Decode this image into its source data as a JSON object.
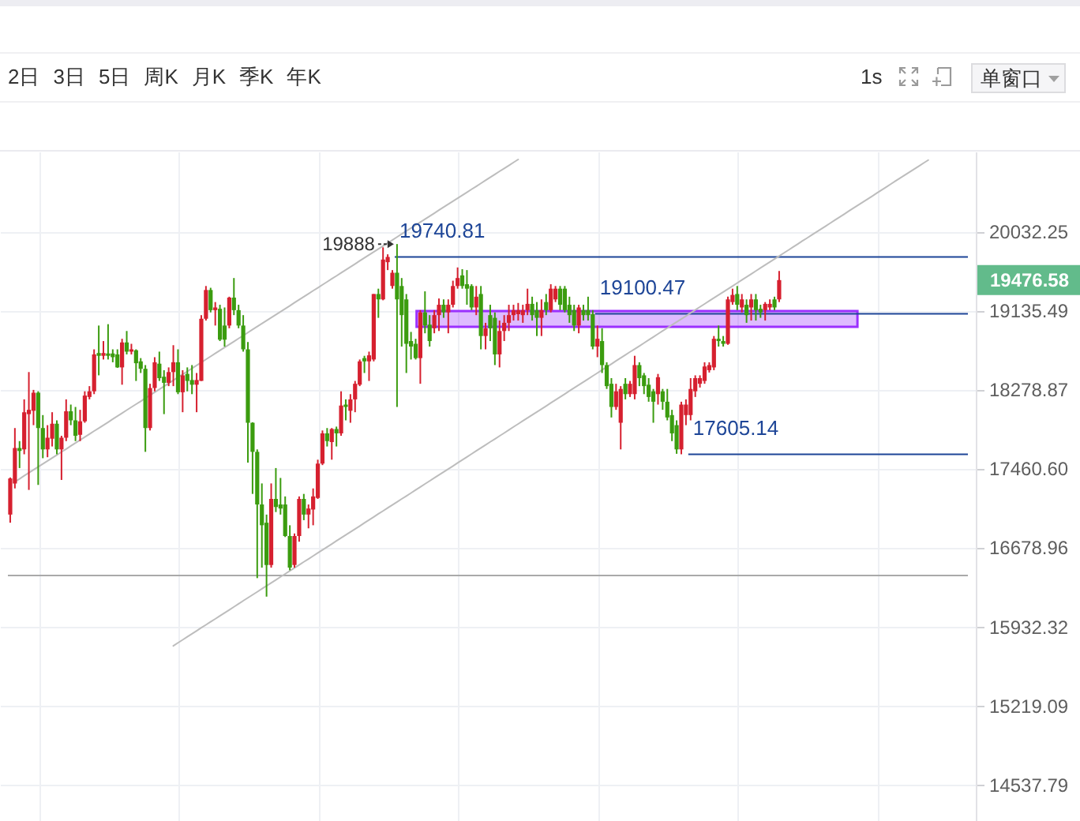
{
  "chart_data": {
    "type": "candlestick",
    "log": true,
    "grid": true,
    "tick_labels": "y",
    "ylim": [
      14232,
      20984
    ],
    "yticks": [
      14537.79,
      15219.09,
      15932.32,
      16678.96,
      {
        "value": 17460.6,
        "label": "17460.60"
      },
      18278.87,
      19135.49,
      20032.25
    ],
    "categories": [
      null,
      null,
      null,
      null,
      null,
      null,
      null,
      null,
      null,
      null,
      null,
      null,
      null,
      null,
      null,
      null,
      null,
      null,
      null,
      null,
      null,
      null,
      null,
      null,
      null,
      null,
      null,
      null,
      null,
      null,
      null,
      null,
      null,
      null,
      null,
      null,
      null,
      null,
      null,
      null,
      null,
      null,
      null,
      null,
      null,
      null,
      null,
      null,
      null,
      null,
      null,
      null,
      null,
      null,
      null,
      null,
      null,
      null,
      null,
      null,
      null,
      null,
      null,
      null,
      null,
      null,
      null,
      null,
      null,
      null,
      null,
      null,
      null,
      null,
      null,
      null,
      null,
      null,
      null,
      null,
      null,
      null,
      null,
      null,
      null,
      null,
      null,
      null,
      null,
      null,
      null,
      null,
      null,
      null,
      null,
      null,
      null,
      null,
      null,
      null,
      null,
      null,
      null,
      null,
      null,
      null,
      null,
      null,
      null,
      null,
      null,
      null,
      null,
      null,
      null,
      null,
      null,
      null,
      null,
      null,
      null,
      null,
      null,
      null,
      null,
      null,
      null,
      null,
      null,
      null,
      null,
      null,
      null,
      null,
      null,
      null,
      null,
      null,
      null,
      null,
      null,
      null,
      null,
      null,
      null,
      null,
      null,
      null,
      null,
      null,
      null,
      null,
      null,
      null,
      null,
      null,
      null,
      null,
      null,
      null,
      null,
      null,
      null,
      null,
      null,
      null,
      null,
      null,
      null,
      null,
      null,
      null,
      null,
      null,
      null,
      null,
      null,
      null,
      null,
      null,
      null,
      null,
      null,
      null,
      null,
      null,
      null,
      null,
      null,
      null,
      null,
      null,
      null,
      null,
      null,
      null,
      null,
      null,
      null,
      null,
      null,
      null,
      null,
      null,
      null,
      null
    ],
    "ohlc": [
      [
        17000,
        17370,
        16920,
        17360
      ],
      [
        17310,
        17875,
        17260,
        17670
      ],
      [
        17670,
        17740,
        17465,
        17640
      ],
      [
        17655,
        18175,
        17605,
        18040
      ],
      [
        18020,
        18465,
        17245,
        18065
      ],
      [
        18055,
        18275,
        17905,
        18245
      ],
      [
        18245,
        18260,
        17295,
        17875
      ],
      [
        17875,
        18010,
        17565,
        17655
      ],
      [
        17655,
        17905,
        17575,
        17775
      ],
      [
        17765,
        18040,
        17685,
        17920
      ],
      [
        17920,
        17955,
        17605,
        17655
      ],
      [
        17655,
        17795,
        17345,
        17775
      ],
      [
        17775,
        18175,
        17740,
        18050
      ],
      [
        18050,
        18120,
        17905,
        17955
      ],
      [
        17955,
        18095,
        17740,
        17795
      ],
      [
        17805,
        18065,
        17740,
        17945
      ],
      [
        17945,
        18260,
        17930,
        18215
      ],
      [
        18200,
        18315,
        18175,
        18260
      ],
      [
        18260,
        18710,
        18230,
        18655
      ],
      [
        18670,
        18970,
        18430,
        18640
      ],
      [
        18640,
        18800,
        18600,
        18670
      ],
      [
        18665,
        18985,
        18600,
        18640
      ],
      [
        18665,
        18710,
        18570,
        18625
      ],
      [
        18655,
        18710,
        18510,
        18515
      ],
      [
        18515,
        18825,
        18330,
        18785
      ],
      [
        18785,
        18910,
        18655,
        18685
      ],
      [
        18685,
        18770,
        18655,
        18710
      ],
      [
        18700,
        18710,
        18370,
        18560
      ],
      [
        18580,
        18615,
        18455,
        18500
      ],
      [
        18500,
        18540,
        17630,
        17875
      ],
      [
        17875,
        18340,
        17850,
        18295
      ],
      [
        18295,
        18625,
        18260,
        18570
      ],
      [
        18555,
        18685,
        18370,
        18400
      ],
      [
        18415,
        18485,
        18020,
        18350
      ],
      [
        18350,
        18515,
        18315,
        18465
      ],
      [
        18465,
        18755,
        18315,
        18570
      ],
      [
        18570,
        18710,
        18230,
        18250
      ],
      [
        18250,
        18485,
        18040,
        18430
      ],
      [
        18445,
        18515,
        18260,
        18370
      ],
      [
        18380,
        18540,
        18230,
        18330
      ],
      [
        18330,
        18455,
        18040,
        18380
      ],
      [
        18370,
        19085,
        18370,
        19045
      ],
      [
        19045,
        19410,
        19025,
        19365
      ],
      [
        19365,
        19390,
        19115,
        19140
      ],
      [
        19140,
        19230,
        18970,
        19170
      ],
      [
        19155,
        19200,
        18800,
        18815
      ],
      [
        18970,
        19170,
        18740,
        18815
      ],
      [
        18970,
        19290,
        18940,
        19280
      ],
      [
        19280,
        19500,
        19085,
        19140
      ],
      [
        19140,
        19200,
        18940,
        18970
      ],
      [
        18970,
        19085,
        18685,
        18710
      ],
      [
        18710,
        18790,
        17520,
        17930
      ],
      [
        17930,
        17935,
        17205,
        17630
      ],
      [
        17630,
        17655,
        16385,
        17100
      ],
      [
        17100,
        17310,
        16485,
        16895
      ],
      [
        16920,
        17000,
        16210,
        16510
      ],
      [
        16510,
        17310,
        16485,
        17155
      ],
      [
        17155,
        17465,
        17025,
        17075
      ],
      [
        17100,
        17365,
        17000,
        17060
      ],
      [
        17100,
        17180,
        16780,
        16790
      ],
      [
        16790,
        16895,
        16460,
        16485
      ],
      [
        16510,
        16815,
        16485,
        16790
      ],
      [
        16790,
        17180,
        16735,
        17155
      ],
      [
        17155,
        17205,
        16945,
        17000
      ],
      [
        17000,
        17100,
        16865,
        17060
      ],
      [
        17050,
        17260,
        16895,
        17180
      ],
      [
        17165,
        17550,
        17155,
        17510
      ],
      [
        17510,
        17850,
        17495,
        17820
      ],
      [
        17820,
        17875,
        17685,
        17740
      ],
      [
        17730,
        17875,
        17550,
        17865
      ],
      [
        17865,
        17890,
        17685,
        17820
      ],
      [
        17820,
        18260,
        17795,
        18110
      ],
      [
        18120,
        18175,
        17955,
        18095
      ],
      [
        18055,
        18230,
        17930,
        18175
      ],
      [
        18175,
        18370,
        18040,
        18340
      ],
      [
        18330,
        18600,
        18315,
        18580
      ],
      [
        18615,
        18640,
        18455,
        18580
      ],
      [
        18580,
        18685,
        18370,
        18645
      ],
      [
        18600,
        19320,
        18580,
        19320
      ],
      [
        19320,
        19380,
        19055,
        19260
      ],
      [
        19260,
        19850,
        19250,
        19710
      ],
      [
        19680,
        19770,
        19590,
        19740
      ],
      [
        19410,
        19590,
        19380,
        19560
      ],
      [
        19560,
        19888,
        18095,
        19260
      ],
      [
        19410,
        19500,
        18740,
        19085
      ],
      [
        19260,
        19320,
        18455,
        18770
      ],
      [
        18800,
        18900,
        18600,
        18740
      ],
      [
        18770,
        18825,
        18600,
        18615
      ],
      [
        18615,
        19140,
        18340,
        19115
      ],
      [
        19115,
        19350,
        18885,
        18970
      ],
      [
        18980,
        19085,
        18740,
        18800
      ],
      [
        18940,
        19140,
        18885,
        19085
      ],
      [
        19085,
        19270,
        18910,
        19200
      ],
      [
        19200,
        19260,
        19055,
        19115
      ],
      [
        19115,
        19260,
        18885,
        19200
      ],
      [
        19200,
        19470,
        19170,
        19410
      ],
      [
        19410,
        19620,
        19380,
        19500
      ],
      [
        19530,
        19600,
        19380,
        19410
      ],
      [
        19430,
        19590,
        19200,
        19380
      ],
      [
        19410,
        19430,
        19140,
        19170
      ],
      [
        19170,
        19410,
        19085,
        19290
      ],
      [
        19320,
        19410,
        18710,
        18855
      ],
      [
        18855,
        19000,
        18710,
        18940
      ],
      [
        19085,
        19200,
        18800,
        18940
      ],
      [
        19055,
        19115,
        18540,
        18655
      ],
      [
        18655,
        19025,
        18515,
        18910
      ],
      [
        18910,
        19085,
        18800,
        19000
      ],
      [
        19000,
        19200,
        18910,
        19085
      ],
      [
        19085,
        19200,
        19025,
        19140
      ],
      [
        19095,
        19220,
        19025,
        19140
      ],
      [
        19085,
        19200,
        19000,
        19140
      ],
      [
        19140,
        19380,
        19085,
        19210
      ],
      [
        19210,
        19290,
        19025,
        19085
      ],
      [
        19140,
        19230,
        18855,
        19055
      ],
      [
        19055,
        19260,
        18855,
        19140
      ],
      [
        19230,
        19320,
        19085,
        19140
      ],
      [
        19140,
        19430,
        19115,
        19380
      ],
      [
        19260,
        19410,
        19230,
        19380
      ],
      [
        19380,
        19410,
        19140,
        19200
      ],
      [
        19380,
        19410,
        19115,
        19140
      ],
      [
        19200,
        19290,
        19000,
        19085
      ],
      [
        19140,
        19200,
        18910,
        18970
      ],
      [
        18970,
        19200,
        18885,
        19170
      ],
      [
        19140,
        19200,
        19025,
        19085
      ],
      [
        19140,
        19290,
        19025,
        19085
      ],
      [
        19095,
        19140,
        18710,
        18740
      ],
      [
        18740,
        18970,
        18625,
        18825
      ],
      [
        18800,
        18940,
        18455,
        18540
      ],
      [
        18540,
        18570,
        18285,
        18315
      ],
      [
        18340,
        18400,
        17985,
        18095
      ],
      [
        18095,
        18340,
        18065,
        18260
      ],
      [
        17930,
        18315,
        17655,
        18285
      ],
      [
        18340,
        18400,
        18175,
        18230
      ],
      [
        18230,
        18370,
        18200,
        18340
      ],
      [
        18230,
        18640,
        18175,
        18540
      ],
      [
        18540,
        18570,
        18315,
        18400
      ],
      [
        18430,
        18455,
        18230,
        18315
      ],
      [
        18330,
        18400,
        18150,
        18200
      ],
      [
        18260,
        18285,
        17930,
        18150
      ],
      [
        18230,
        18445,
        18120,
        18410
      ],
      [
        18260,
        18285,
        18065,
        18150
      ],
      [
        18150,
        18285,
        17955,
        17985
      ],
      [
        18010,
        18065,
        17740,
        17820
      ],
      [
        17905,
        17955,
        17610,
        17655
      ],
      [
        17655,
        18150,
        17605.14,
        18120
      ],
      [
        18010,
        18175,
        17905,
        18120
      ],
      [
        18010,
        18400,
        17955,
        18285
      ],
      [
        18260,
        18430,
        18200,
        18400
      ],
      [
        18340,
        18430,
        18300,
        18400
      ],
      [
        18370,
        18570,
        18340,
        18525
      ],
      [
        18485,
        18570,
        18460,
        18540
      ],
      [
        18515,
        18855,
        18485,
        18825
      ],
      [
        18825,
        18970,
        18740,
        18800
      ],
      [
        18800,
        18855,
        18740,
        18770
      ],
      [
        18770,
        19290,
        18760,
        19260
      ],
      [
        19230,
        19380,
        19200,
        19310
      ],
      [
        19320,
        19410,
        19140,
        19200
      ],
      [
        19170,
        19320,
        19115,
        19260
      ],
      [
        19200,
        19260,
        19000,
        19085
      ],
      [
        19170,
        19320,
        19025,
        19260
      ],
      [
        19260,
        19320,
        19025,
        19140
      ],
      [
        19155,
        19200,
        19055,
        19115
      ],
      [
        19140,
        19230,
        19025,
        19210
      ],
      [
        19170,
        19260,
        19140,
        19210
      ],
      [
        19260,
        19290,
        19140,
        19170
      ],
      [
        19260,
        19580,
        19230,
        19476.58
      ],
      null,
      null,
      null,
      null,
      null,
      null,
      null,
      null,
      null,
      null,
      null,
      null,
      null,
      null,
      null,
      null,
      null,
      null,
      null,
      null,
      null,
      null,
      null,
      null,
      null,
      null,
      null,
      null,
      null,
      null,
      null,
      null,
      null,
      null,
      null,
      null,
      null,
      null,
      null,
      null
    ],
    "colors": [
      "#d6202f",
      "#d6202f",
      "#3b9c0f",
      "#d6202f",
      "#d6202f",
      "#d6202f",
      "#3b9c0f",
      "#3b9c0f",
      "#d6202f",
      "#d6202f",
      "#3b9c0f",
      "#d6202f",
      "#d6202f",
      "#3b9c0f",
      "#3b9c0f",
      "#d6202f",
      "#d6202f",
      "#d6202f",
      "#d6202f",
      "#3b9c0f",
      "#d6202f",
      "#3b9c0f",
      "#3b9c0f",
      "#3b9c0f",
      "#d6202f",
      "#3b9c0f",
      "#d6202f",
      "#3b9c0f",
      "#3b9c0f",
      "#3b9c0f",
      "#d6202f",
      "#d6202f",
      "#3b9c0f",
      "#3b9c0f",
      "#d6202f",
      "#d6202f",
      "#3b9c0f",
      "#d6202f",
      "#3b9c0f",
      "#3b9c0f",
      "#d6202f",
      "#d6202f",
      "#d6202f",
      "#3b9c0f",
      "#d6202f",
      "#3b9c0f",
      "#3b9c0f",
      "#d6202f",
      "#3b9c0f",
      "#3b9c0f",
      "#3b9c0f",
      "#3b9c0f",
      "#3b9c0f",
      "#3b9c0f",
      "#3b9c0f",
      "#3b9c0f",
      "#d6202f",
      "#3b9c0f",
      "#3b9c0f",
      "#3b9c0f",
      "#3b9c0f",
      "#d6202f",
      "#d6202f",
      "#3b9c0f",
      "#d6202f",
      "#d6202f",
      "#d6202f",
      "#d6202f",
      "#3b9c0f",
      "#d6202f",
      "#3b9c0f",
      "#d6202f",
      "#3b9c0f",
      "#d6202f",
      "#d6202f",
      "#d6202f",
      "#3b9c0f",
      "#d6202f",
      "#d6202f",
      "#3b9c0f",
      "#d6202f",
      "#d6202f",
      "#d6202f",
      "#3b9c0f",
      "#3b9c0f",
      "#3b9c0f",
      "#3b9c0f",
      "#3b9c0f",
      "#d6202f",
      "#3b9c0f",
      "#3b9c0f",
      "#d6202f",
      "#d6202f",
      "#3b9c0f",
      "#d6202f",
      "#d6202f",
      "#d6202f",
      "#3b9c0f",
      "#3b9c0f",
      "#3b9c0f",
      "#d6202f",
      "#3b9c0f",
      "#d6202f",
      "#3b9c0f",
      "#3b9c0f",
      "#d6202f",
      "#d6202f",
      "#d6202f",
      "#d6202f",
      "#d6202f",
      "#d6202f",
      "#d6202f",
      "#3b9c0f",
      "#3b9c0f",
      "#d6202f",
      "#3b9c0f",
      "#d6202f",
      "#d6202f",
      "#3b9c0f",
      "#3b9c0f",
      "#3b9c0f",
      "#3b9c0f",
      "#d6202f",
      "#3b9c0f",
      "#3b9c0f",
      "#3b9c0f",
      "#d6202f",
      "#3b9c0f",
      "#3b9c0f",
      "#3b9c0f",
      "#d6202f",
      "#d6202f",
      "#3b9c0f",
      "#d6202f",
      "#d6202f",
      "#3b9c0f",
      "#3b9c0f",
      "#3b9c0f",
      "#3b9c0f",
      "#d6202f",
      "#3b9c0f",
      "#3b9c0f",
      "#3b9c0f",
      "#3b9c0f",
      "#d6202f",
      "#d6202f",
      "#d6202f",
      "#d6202f",
      "#d6202f",
      "#d6202f",
      "#d6202f",
      "#d6202f",
      "#3b9c0f",
      "#3b9c0f",
      "#d6202f",
      "#d6202f",
      "#3b9c0f",
      "#d6202f",
      "#3b9c0f",
      "#d6202f",
      "#3b9c0f",
      "#3b9c0f",
      "#d6202f",
      "#d6202f",
      "#3b9c0f",
      "#d6202f",
      null,
      null,
      null,
      null,
      null,
      null,
      null,
      null,
      null,
      null,
      null,
      null,
      null,
      null,
      null,
      null,
      null,
      null,
      null,
      null,
      null,
      null,
      null,
      null,
      null,
      null,
      null,
      null,
      null,
      null,
      null,
      null,
      null,
      null,
      null,
      null,
      null,
      null,
      null,
      null
    ],
    "series": [
      {
        "type": "line",
        "color": "#bdbdbd",
        "values": [
          null,
          17326,
          17356,
          17387,
          17417,
          17447,
          17477,
          17507,
          17538,
          17568,
          17598,
          17629,
          17659,
          17690,
          17721,
          17752,
          17782,
          17813,
          17844,
          17874,
          17905,
          17936,
          17968,
          17999,
          18030,
          18062,
          18093,
          18124,
          18155,
          18187,
          18218,
          18250,
          18282,
          18313,
          18345,
          18377,
          18409,
          18441,
          18472,
          18504,
          18536,
          18568,
          18601,
          18633,
          18666,
          18698,
          18730,
          18763,
          18795,
          18828,
          18860,
          18893,
          18926,
          18959,
          18992,
          19025,
          19057,
          19090,
          19123,
          19156,
          19189,
          19223,
          19256,
          19290,
          19323,
          19357,
          19390,
          19424,
          19457,
          19491,
          19524,
          19558,
          19592,
          19626,
          19660,
          19695,
          19729,
          19763,
          19797,
          19831,
          19865,
          19900,
          19934,
          19969,
          20004,
          20039,
          20073,
          20108,
          20143,
          20177,
          20212,
          20247,
          20283,
          20318,
          20353,
          20389,
          20424,
          20459,
          20494,
          20530,
          20565,
          20601,
          20637,
          20673,
          20709,
          20745,
          20780,
          20816,
          20852,
          20888,
          null,
          null,
          null,
          null,
          null,
          null,
          null,
          null,
          null,
          null,
          null,
          null,
          null,
          null,
          null,
          null,
          null,
          null,
          null,
          null,
          null,
          null,
          null,
          null,
          null,
          null,
          null,
          null,
          null,
          null,
          null,
          null,
          null,
          null,
          null,
          null,
          null,
          null,
          null,
          null,
          null,
          null,
          null,
          null,
          null,
          null,
          null,
          null,
          null,
          null,
          null,
          null,
          null,
          null,
          null,
          null,
          null,
          null,
          null,
          null,
          null,
          null,
          null,
          null,
          null,
          null,
          null,
          null,
          null,
          null,
          null,
          null,
          null,
          null,
          null,
          null,
          null,
          null,
          null,
          null,
          null,
          null,
          null,
          null,
          null,
          null,
          null,
          null,
          null,
          null,
          null,
          null,
          null,
          null,
          null,
          null
        ]
      },
      {
        "type": "line",
        "color": "#bdbdbd",
        "values": [
          null,
          null,
          null,
          null,
          null,
          null,
          null,
          null,
          null,
          null,
          null,
          null,
          null,
          null,
          null,
          null,
          null,
          null,
          null,
          null,
          null,
          null,
          null,
          null,
          null,
          null,
          null,
          null,
          null,
          null,
          null,
          null,
          null,
          null,
          null,
          15754,
          15782,
          15809,
          15837,
          15864,
          15892,
          15920,
          15947,
          15975,
          16002,
          16030,
          16058,
          16086,
          16114,
          16142,
          16171,
          16199,
          16227,
          16255,
          16283,
          16311,
          16340,
          16368,
          16397,
          16425,
          16454,
          16483,
          16511,
          16540,
          16568,
          16597,
          16626,
          16655,
          16684,
          16713,
          16743,
          16772,
          16801,
          16830,
          16859,
          16888,
          16918,
          16947,
          16977,
          17007,
          17036,
          17066,
          17095,
          17125,
          17155,
          17184,
          17214,
          17245,
          17275,
          17305,
          17335,
          17365,
          17395,
          17426,
          17456,
          17486,
          17517,
          17547,
          17578,
          17609,
          17640,
          17670,
          17701,
          17732,
          17762,
          17793,
          17824,
          17855,
          17887,
          17918,
          17949,
          17980,
          18012,
          18043,
          18074,
          18105,
          18137,
          18169,
          18200,
          18232,
          18264,
          18296,
          18328,
          18359,
          18391,
          18423,
          18455,
          18488,
          18520,
          18552,
          18585,
          18617,
          18649,
          18682,
          18714,
          18746,
          18779,
          18812,
          18845,
          18878,
          18911,
          18943,
          18976,
          19009,
          19042,
          19075,
          19109,
          19142,
          19176,
          19209,
          19243,
          19276,
          19309,
          19343,
          19376,
          19410,
          19444,
          19478,
          19512,
          19546,
          19580,
          19614,
          19648,
          19682,
          19716,
          19750,
          19785,
          19819,
          19854,
          19889,
          19924,
          19958,
          19993,
          20028,
          20062,
          20097,
          20132,
          20168,
          20203,
          20238,
          20274,
          20309,
          20344,
          20379,
          20415,
          20450,
          20486,
          20522,
          20558,
          20594,
          20630,
          20665,
          20701,
          20737,
          20773,
          20809,
          20845,
          20881,
          null,
          null,
          null,
          null,
          null,
          null,
          null,
          null
        ]
      }
    ],
    "ref_lines": [
      {
        "axis": "y",
        "value": 19740.81,
        "label": "19740.81",
        "color": "#1d4597"
      },
      {
        "axis": "y",
        "value": 19100.47,
        "label": "19100.47",
        "color": "#1d4597"
      },
      {
        "axis": "y",
        "value": 17605.14,
        "label": "17605.14",
        "color": "#1d4597"
      },
      {
        "axis": "y",
        "value": 16410,
        "color": "#a9a9a9"
      }
    ],
    "bands": [
      {
        "axis": "y",
        "from": 18955,
        "to": 19130,
        "color": "#9b30ff"
      }
    ],
    "annotations": [
      "2日",
      "3日",
      "5日",
      "周K",
      "月K",
      "季K",
      "年K",
      "1s",
      "单窗口",
      "19888",
      "19476.58"
    ]
  }
}
